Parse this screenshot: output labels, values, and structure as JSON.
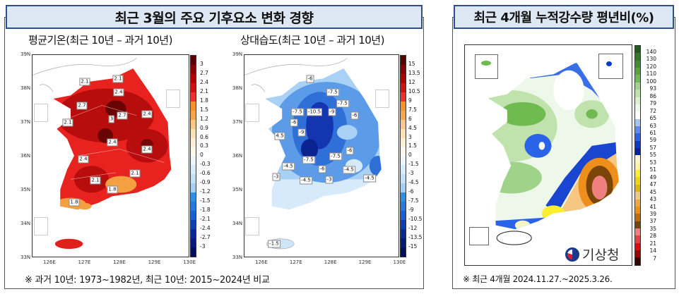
{
  "left_panel": {
    "title": "최근 3월의 주요 기후요소 변화 경향",
    "footnote": "※ 과거 10년: 1973~1982년, 최근 10년: 2015~2024년 비교"
  },
  "axes": {
    "lat": [
      "39N",
      "38N",
      "37N",
      "36N",
      "35N",
      "34N",
      "33N"
    ],
    "lon": [
      "126E",
      "127E",
      "128E",
      "129E",
      "130E"
    ]
  },
  "map_temp": {
    "title": "평균기온(최근 10년 – 과거 10년)",
    "colorbar": {
      "labels": [
        "3",
        "2.7",
        "2.4",
        "2.1",
        "1.8",
        "1.5",
        "1.2",
        "0.9",
        "0.6",
        "0.3",
        "0",
        "-0.3",
        "-0.6",
        "-0.9",
        "-1.2",
        "-1.5",
        "-1.8",
        "-2.1",
        "-2.4",
        "-2.7",
        "-3"
      ],
      "colors": [
        "#5a0000",
        "#8a0000",
        "#b00000",
        "#d40f0f",
        "#ee3030",
        "#f3932a",
        "#f5a74a",
        "#f8c88a",
        "#fbe0b8",
        "#fdeed6",
        "#fff8ee",
        "#eef6fd",
        "#d8ecfb",
        "#c2e0f8",
        "#a6cff3",
        "#2f8ee6",
        "#2878e0",
        "#1a5fd6",
        "#0d3fb4",
        "#0a2898",
        "#061a7a",
        "#020f5a"
      ]
    },
    "contour_labels": [
      "2.1",
      "2.1",
      "2.4",
      "2.7",
      "3",
      "2.7",
      "2.4",
      "2.1",
      "2.4",
      "2.4",
      "2.4",
      "2.1",
      "2.1",
      "1.8",
      "1.8"
    ]
  },
  "map_humidity": {
    "title": "상대습도(최근 10년 – 과거 10년)",
    "colorbar": {
      "labels": [
        "15",
        "13.5",
        "12",
        "10.5",
        "9",
        "7.5",
        "6",
        "4.5",
        "3",
        "1.5",
        "0",
        "-1.5",
        "-3",
        "-4.5",
        "-6",
        "-7.5",
        "-9",
        "-10.5",
        "-12",
        "-13.5",
        "-15"
      ]
    },
    "contour_labels": [
      "-6",
      "-7.5",
      "-7.5",
      "-7.5",
      "-10.5",
      "-9",
      "-6",
      "-6",
      "4.5",
      "-9",
      "-6",
      "-7.5",
      "-7.5",
      "-4.5",
      "-6",
      "-4.5",
      "-3",
      "-4.5",
      "-3",
      "-4.5",
      "-1.5"
    ]
  },
  "right_panel": {
    "title": "최근 4개월 누적강수량 평년비(%)",
    "footnote": "※ 최근 4개월 2024.11.27.~2025.3.26.",
    "logo_text": "기상청"
  },
  "map_precip": {
    "colorbar": {
      "labels": [
        "140",
        "130",
        "120",
        "110",
        "100",
        "93",
        "86",
        "79",
        "72",
        "65",
        "63",
        "61",
        "59",
        "57",
        "55",
        "53",
        "51",
        "49",
        "47",
        "45",
        "43",
        "41",
        "39",
        "37",
        "35",
        "28",
        "21",
        "14",
        "7"
      ],
      "colors": [
        "#1e5a1e",
        "#2f7a25",
        "#3f8f2e",
        "#56a63c",
        "#6fbb52",
        "#9fd38a",
        "#c0e2ad",
        "#dcefd0",
        "#eef8ea",
        "#ffffff",
        "#a8c4f4",
        "#5a8ff0",
        "#2a62e8",
        "#0a3ccc",
        "#04249e",
        "#fbf6c8",
        "#fdf3a0",
        "#fbee30",
        "#f2d410",
        "#e0b510",
        "#f5c780",
        "#f3a640",
        "#ed8f1a",
        "#c06c0a",
        "#7a4608",
        "#f08080",
        "#e84040",
        "#e00a0a",
        "#a00000",
        "#3a0000"
      ]
    },
    "contour_labels": [
      "59",
      "61",
      "63",
      "93",
      "72",
      "79",
      "66",
      "47",
      "86",
      "43",
      "45",
      "79",
      "61",
      "49",
      "65",
      "57",
      "55",
      "59",
      "41"
    ]
  }
}
